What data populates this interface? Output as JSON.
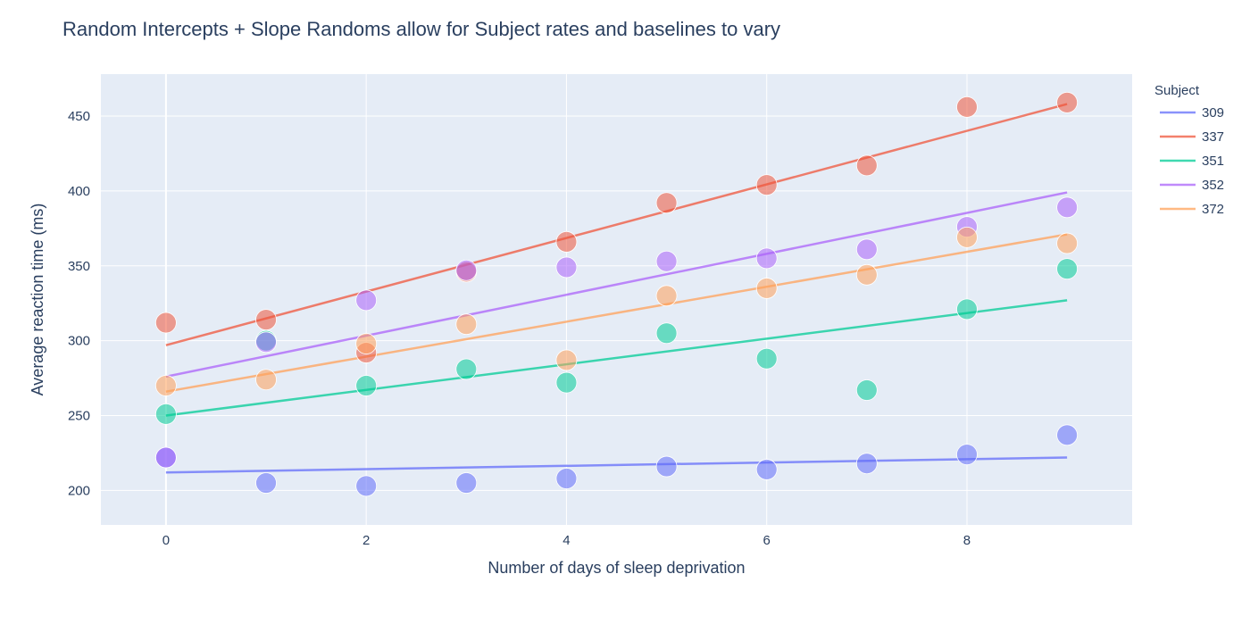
{
  "chart_data": {
    "type": "scatter",
    "title": "Random Intercepts + Slope Randoms allow for Subject rates and baselines to vary",
    "xlabel": "Number of days of sleep deprivation",
    "ylabel": "Average reaction time (ms)",
    "xlim": [
      -0.65,
      9.65
    ],
    "ylim": [
      177,
      478
    ],
    "xticks": [
      0,
      2,
      4,
      6,
      8
    ],
    "yticks": [
      200,
      250,
      300,
      350,
      400,
      450
    ],
    "grid": true,
    "plot_background": "#e5ecf6",
    "legend": {
      "title": "Subject",
      "placement": "right"
    },
    "series": [
      {
        "name": "309",
        "color": "#636efa",
        "x": [
          0,
          1,
          2,
          3,
          4,
          5,
          6,
          7,
          8,
          9
        ],
        "y": [
          222,
          205,
          203,
          205,
          208,
          216,
          214,
          218,
          224,
          237
        ],
        "fit": {
          "x": [
            0,
            9
          ],
          "y": [
            212,
            222
          ]
        }
      },
      {
        "name": "337",
        "color": "#ef553b",
        "x": [
          0,
          1,
          2,
          3,
          4,
          5,
          6,
          7,
          8,
          9
        ],
        "y": [
          312,
          314,
          292,
          346,
          366,
          392,
          404,
          417,
          456,
          459
        ],
        "fit": {
          "x": [
            0,
            9
          ],
          "y": [
            297,
            458
          ]
        }
      },
      {
        "name": "351",
        "color": "#00cc96",
        "x": [
          0,
          1,
          2,
          3,
          4,
          5,
          6,
          7,
          8,
          9
        ],
        "y": [
          251,
          300,
          270,
          281,
          272,
          305,
          288,
          267,
          321,
          348
        ],
        "fit": {
          "x": [
            0,
            9
          ],
          "y": [
            250,
            327
          ]
        }
      },
      {
        "name": "352",
        "color": "#ab63fa",
        "x": [
          0,
          1,
          2,
          3,
          4,
          5,
          6,
          7,
          8,
          9
        ],
        "y": [
          222,
          299,
          327,
          347,
          349,
          353,
          355,
          361,
          376,
          389
        ],
        "fit": {
          "x": [
            0,
            9
          ],
          "y": [
            276,
            399
          ]
        }
      },
      {
        "name": "372",
        "color": "#ffa15a",
        "x": [
          0,
          1,
          2,
          3,
          4,
          5,
          6,
          7,
          8,
          9
        ],
        "y": [
          270,
          274,
          298,
          311,
          287,
          330,
          335,
          344,
          369,
          365
        ],
        "fit": {
          "x": [
            0,
            9
          ],
          "y": [
            266,
            371
          ]
        }
      }
    ]
  }
}
